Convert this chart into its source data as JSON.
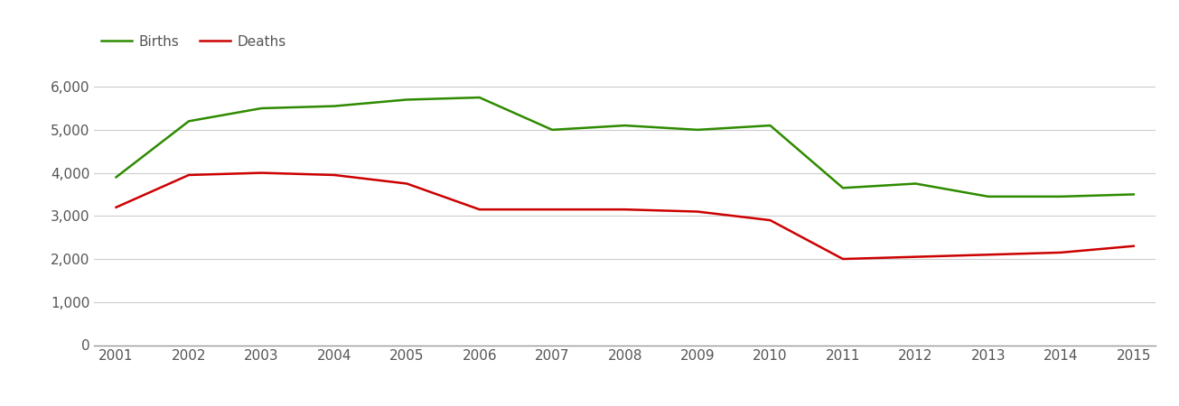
{
  "years": [
    2001,
    2002,
    2003,
    2004,
    2005,
    2006,
    2007,
    2008,
    2009,
    2010,
    2011,
    2012,
    2013,
    2014,
    2015
  ],
  "births": [
    3900,
    5200,
    5500,
    5550,
    5700,
    5750,
    5000,
    5100,
    5000,
    5100,
    3650,
    3750,
    3450,
    3450,
    3500
  ],
  "deaths": [
    3200,
    3950,
    4000,
    3950,
    3750,
    3150,
    3150,
    3150,
    3100,
    2900,
    2000,
    2050,
    2100,
    2150,
    2300
  ],
  "births_color": "#2e8b00",
  "deaths_color": "#cc0000",
  "line_width": 1.8,
  "ylim": [
    0,
    6600
  ],
  "yticks": [
    0,
    1000,
    2000,
    3000,
    4000,
    5000,
    6000
  ],
  "background_color": "#ffffff",
  "grid_color": "#cccccc",
  "legend_labels": [
    "Births",
    "Deaths"
  ],
  "tick_fontsize": 11,
  "tick_color": "#555555"
}
